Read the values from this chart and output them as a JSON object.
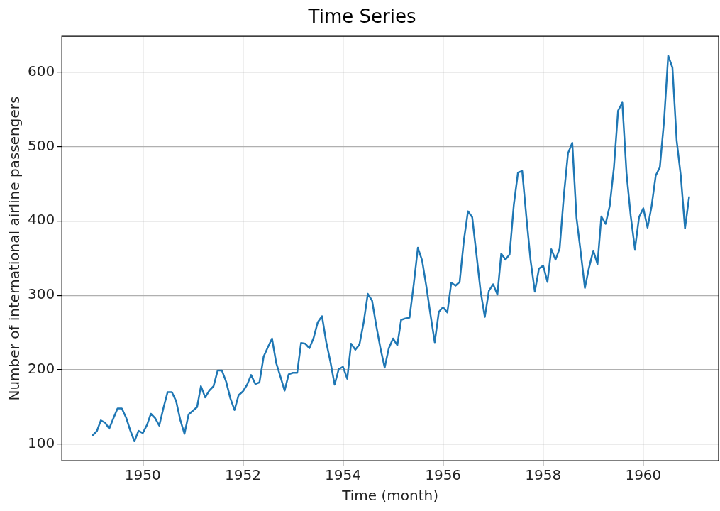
{
  "chart_data": {
    "type": "line",
    "title": "Time Series",
    "xlabel": "Time (month)",
    "ylabel": "Number of international airline passengers",
    "x": [
      "1949-01",
      "1949-02",
      "1949-03",
      "1949-04",
      "1949-05",
      "1949-06",
      "1949-07",
      "1949-08",
      "1949-09",
      "1949-10",
      "1949-11",
      "1949-12",
      "1950-01",
      "1950-02",
      "1950-03",
      "1950-04",
      "1950-05",
      "1950-06",
      "1950-07",
      "1950-08",
      "1950-09",
      "1950-10",
      "1950-11",
      "1950-12",
      "1951-01",
      "1951-02",
      "1951-03",
      "1951-04",
      "1951-05",
      "1951-06",
      "1951-07",
      "1951-08",
      "1951-09",
      "1951-10",
      "1951-11",
      "1951-12",
      "1952-01",
      "1952-02",
      "1952-03",
      "1952-04",
      "1952-05",
      "1952-06",
      "1952-07",
      "1952-08",
      "1952-09",
      "1952-10",
      "1952-11",
      "1952-12",
      "1953-01",
      "1953-02",
      "1953-03",
      "1953-04",
      "1953-05",
      "1953-06",
      "1953-07",
      "1953-08",
      "1953-09",
      "1953-10",
      "1953-11",
      "1953-12",
      "1954-01",
      "1954-02",
      "1954-03",
      "1954-04",
      "1954-05",
      "1954-06",
      "1954-07",
      "1954-08",
      "1954-09",
      "1954-10",
      "1954-11",
      "1954-12",
      "1955-01",
      "1955-02",
      "1955-03",
      "1955-04",
      "1955-05",
      "1955-06",
      "1955-07",
      "1955-08",
      "1955-09",
      "1955-10",
      "1955-11",
      "1955-12",
      "1956-01",
      "1956-02",
      "1956-03",
      "1956-04",
      "1956-05",
      "1956-06",
      "1956-07",
      "1956-08",
      "1956-09",
      "1956-10",
      "1956-11",
      "1956-12",
      "1957-01",
      "1957-02",
      "1957-03",
      "1957-04",
      "1957-05",
      "1957-06",
      "1957-07",
      "1957-08",
      "1957-09",
      "1957-10",
      "1957-11",
      "1957-12",
      "1958-01",
      "1958-02",
      "1958-03",
      "1958-04",
      "1958-05",
      "1958-06",
      "1958-07",
      "1958-08",
      "1958-09",
      "1958-10",
      "1958-11",
      "1958-12",
      "1959-01",
      "1959-02",
      "1959-03",
      "1959-04",
      "1959-05",
      "1959-06",
      "1959-07",
      "1959-08",
      "1959-09",
      "1959-10",
      "1959-11",
      "1959-12",
      "1960-01",
      "1960-02",
      "1960-03",
      "1960-04",
      "1960-05",
      "1960-06",
      "1960-07",
      "1960-08",
      "1960-09",
      "1960-10",
      "1960-11",
      "1960-12"
    ],
    "series": [
      {
        "color": "#1f77b4",
        "values": [
          112,
          118,
          132,
          129,
          121,
          135,
          148,
          148,
          136,
          119,
          104,
          118,
          115,
          126,
          141,
          135,
          125,
          149,
          170,
          170,
          158,
          133,
          114,
          140,
          145,
          150,
          178,
          163,
          172,
          178,
          199,
          199,
          184,
          162,
          146,
          166,
          171,
          180,
          193,
          181,
          183,
          218,
          230,
          242,
          209,
          191,
          172,
          194,
          196,
          196,
          236,
          235,
          229,
          243,
          264,
          272,
          237,
          211,
          180,
          201,
          204,
          188,
          235,
          227,
          234,
          264,
          302,
          293,
          259,
          229,
          203,
          229,
          242,
          233,
          267,
          269,
          270,
          315,
          364,
          347,
          312,
          274,
          237,
          278,
          284,
          277,
          317,
          313,
          318,
          374,
          413,
          405,
          355,
          306,
          271,
          306,
          315,
          301,
          356,
          348,
          355,
          422,
          465,
          467,
          404,
          347,
          305,
          336,
          340,
          318,
          362,
          348,
          363,
          435,
          491,
          505,
          404,
          359,
          310,
          337,
          360,
          342,
          406,
          396,
          420,
          472,
          548,
          559,
          463,
          407,
          362,
          405,
          417,
          391,
          419,
          461,
          472,
          535,
          622,
          606,
          508,
          461,
          390,
          432
        ]
      }
    ],
    "xlim": [
      "1948-05-20",
      "1961-07-04"
    ],
    "xticks": [
      {
        "value": "1950",
        "label": "1950"
      },
      {
        "value": "1952",
        "label": "1952"
      },
      {
        "value": "1954",
        "label": "1954"
      },
      {
        "value": "1956",
        "label": "1956"
      },
      {
        "value": "1958",
        "label": "1958"
      },
      {
        "value": "1960",
        "label": "1960"
      }
    ],
    "ylim": [
      78,
      648
    ],
    "yticks": [
      100,
      200,
      300,
      400,
      500,
      600
    ],
    "grid": true,
    "marker": "none",
    "line_style": "solid"
  }
}
